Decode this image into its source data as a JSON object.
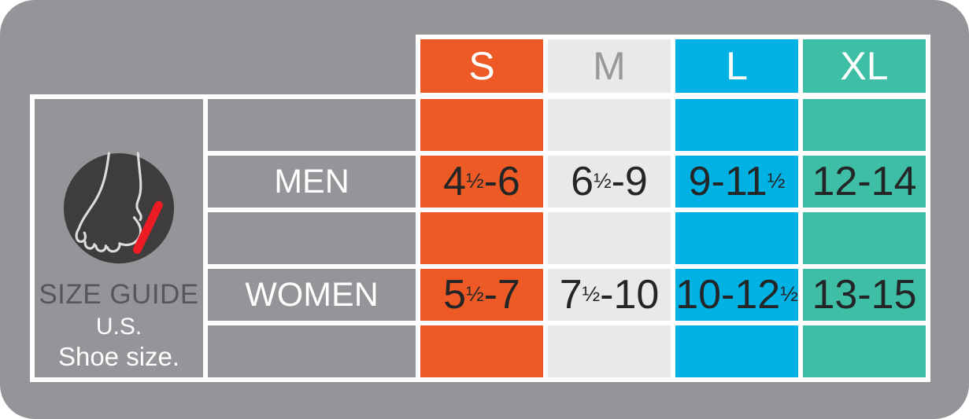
{
  "panel": {
    "icon": "foot-measure-icon",
    "title": "SIZE GUIDE",
    "subtitle_line1": "U.S.",
    "subtitle_line2": "Shoe size."
  },
  "chart_data": {
    "type": "table",
    "title": "SIZE GUIDE U.S. Shoe size.",
    "columns": [
      "S",
      "M",
      "L",
      "XL"
    ],
    "rows": [
      {
        "label": "MEN",
        "values": [
          "4½-6",
          "6½-9",
          "9-11½",
          "12-14"
        ]
      },
      {
        "label": "WOMEN",
        "values": [
          "5½-7",
          "7½-10",
          "10-12½",
          "13-15"
        ]
      }
    ],
    "column_colors": {
      "S": "#EE5A26",
      "M": "#E9E9E8",
      "L": "#00B2E3",
      "XL": "#3EBEA5"
    },
    "layout_hints": {
      "card_background": "#939598",
      "grid_border_color": "#ffffff",
      "value_text_color": "#232526",
      "label_text_color": "#ffffff",
      "m_header_text_color": "#97999C",
      "panel_title_color": "#565759",
      "icon_circle_color": "#3E3C3D",
      "icon_outline_color": "#DCDCDC",
      "icon_accent_color": "#ED1C24"
    }
  }
}
